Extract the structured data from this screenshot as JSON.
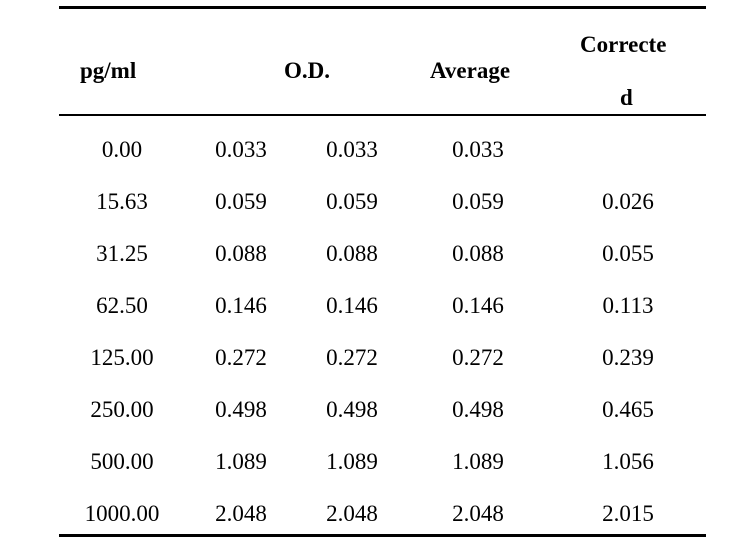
{
  "table": {
    "headers": {
      "concentration": "pg/ml",
      "od": "O.D.",
      "average": "Average",
      "corrected_line1": "Correcte",
      "corrected_line2": "d"
    },
    "rows": [
      {
        "conc": "0.00",
        "od1": "0.033",
        "od2": "0.033",
        "avg": "0.033",
        "corrected": ""
      },
      {
        "conc": "15.63",
        "od1": "0.059",
        "od2": "0.059",
        "avg": "0.059",
        "corrected": "0.026"
      },
      {
        "conc": "31.25",
        "od1": "0.088",
        "od2": "0.088",
        "avg": "0.088",
        "corrected": "0.055"
      },
      {
        "conc": "62.50",
        "od1": "0.146",
        "od2": "0.146",
        "avg": "0.146",
        "corrected": "0.113"
      },
      {
        "conc": "125.00",
        "od1": "0.272",
        "od2": "0.272",
        "avg": "0.272",
        "corrected": "0.239"
      },
      {
        "conc": "250.00",
        "od1": "0.498",
        "od2": "0.498",
        "avg": "0.498",
        "corrected": "0.465"
      },
      {
        "conc": "500.00",
        "od1": "1.089",
        "od2": "1.089",
        "avg": "1.089",
        "corrected": "1.056"
      },
      {
        "conc": "1000.00",
        "od1": "2.048",
        "od2": "2.048",
        "avg": "2.048",
        "corrected": "2.015"
      }
    ]
  }
}
